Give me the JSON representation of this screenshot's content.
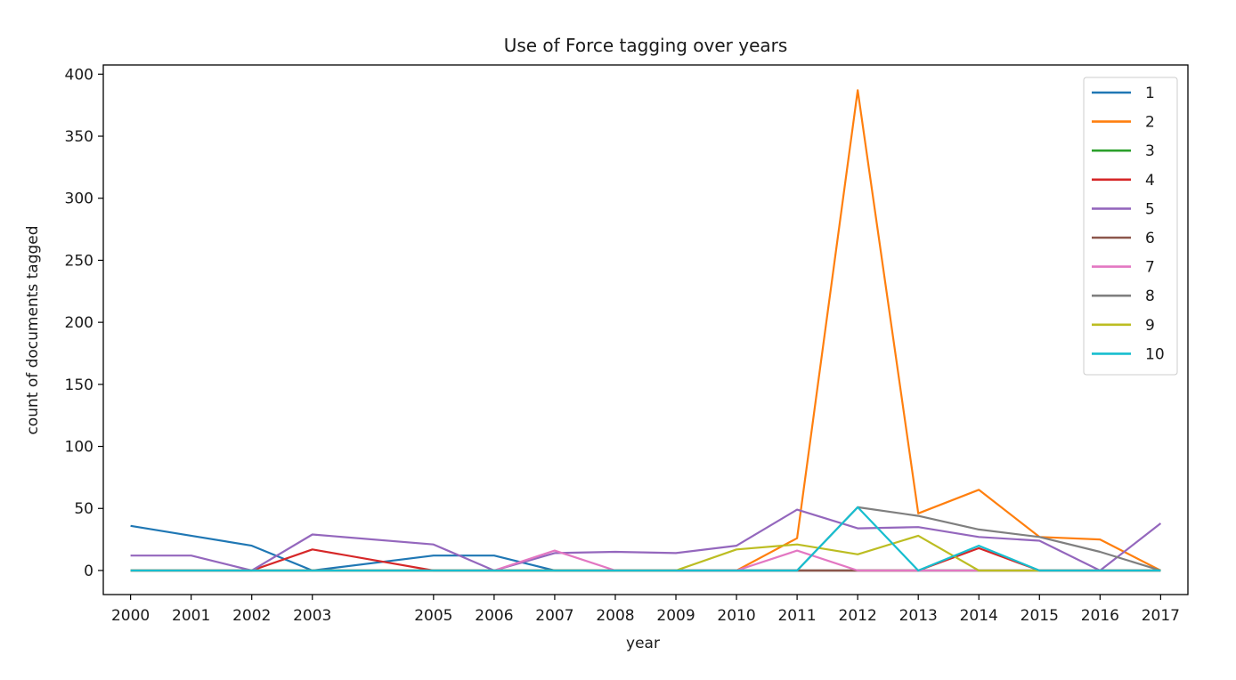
{
  "chart_data": {
    "type": "line",
    "title": "Use of Force tagging over years",
    "xlabel": "year",
    "ylabel": "count of documents tagged",
    "x": [
      2000,
      2001,
      2002,
      2003,
      2005,
      2006,
      2007,
      2008,
      2009,
      2010,
      2011,
      2012,
      2013,
      2014,
      2015,
      2016,
      2017
    ],
    "x_tick_labels": [
      "2000",
      "2001",
      "2002",
      "2003",
      "2005",
      "2006",
      "2007",
      "2008",
      "2009",
      "2010",
      "2011",
      "2012",
      "2013",
      "2014",
      "2015",
      "2016",
      "2017"
    ],
    "xlim": [
      1999.55,
      2017.45
    ],
    "y_ticks": [
      0,
      50,
      100,
      150,
      200,
      250,
      300,
      350,
      400
    ],
    "y_tick_labels": [
      "0",
      "50",
      "100",
      "150",
      "200",
      "250",
      "300",
      "350",
      "400"
    ],
    "ylim": [
      -19.4,
      407.4
    ],
    "grid": false,
    "legend_position": "top-right",
    "series": [
      {
        "name": "1",
        "color": "#1f77b4",
        "values": [
          36,
          28,
          20,
          0,
          12,
          12,
          0,
          0,
          0,
          0,
          0,
          0,
          0,
          0,
          0,
          0,
          0
        ]
      },
      {
        "name": "2",
        "color": "#ff7f0e",
        "values": [
          0,
          0,
          0,
          0,
          0,
          0,
          0,
          0,
          0,
          0,
          26,
          387,
          46,
          65,
          27,
          25,
          0
        ]
      },
      {
        "name": "3",
        "color": "#2ca02c",
        "values": [
          0,
          0,
          0,
          0,
          0,
          0,
          0,
          0,
          0,
          0,
          0,
          0,
          0,
          0,
          0,
          0,
          0
        ]
      },
      {
        "name": "4",
        "color": "#d62728",
        "values": [
          0,
          0,
          0,
          17,
          0,
          0,
          0,
          0,
          0,
          0,
          0,
          0,
          0,
          18,
          0,
          0,
          0
        ]
      },
      {
        "name": "5",
        "color": "#9467bd",
        "values": [
          12,
          12,
          0,
          29,
          21,
          0,
          14,
          15,
          14,
          20,
          49,
          34,
          35,
          27,
          24,
          0,
          38
        ]
      },
      {
        "name": "6",
        "color": "#8c564b",
        "values": [
          0,
          0,
          0,
          0,
          0,
          0,
          0,
          0,
          0,
          0,
          0,
          0,
          0,
          0,
          0,
          0,
          0
        ]
      },
      {
        "name": "7",
        "color": "#e377c2",
        "values": [
          0,
          0,
          0,
          0,
          0,
          0,
          16,
          0,
          0,
          0,
          16,
          0,
          0,
          0,
          0,
          0,
          0
        ]
      },
      {
        "name": "8",
        "color": "#7f7f7f",
        "values": [
          0,
          0,
          0,
          0,
          0,
          0,
          0,
          0,
          0,
          0,
          0,
          51,
          44,
          33,
          27,
          15,
          0
        ]
      },
      {
        "name": "9",
        "color": "#bcbd22",
        "values": [
          0,
          0,
          0,
          0,
          0,
          0,
          0,
          0,
          0,
          17,
          21,
          13,
          28,
          0,
          0,
          0,
          0
        ]
      },
      {
        "name": "10",
        "color": "#17becf",
        "values": [
          0,
          0,
          0,
          0,
          0,
          0,
          0,
          0,
          0,
          0,
          0,
          51,
          0,
          20,
          0,
          0,
          0
        ]
      }
    ]
  }
}
